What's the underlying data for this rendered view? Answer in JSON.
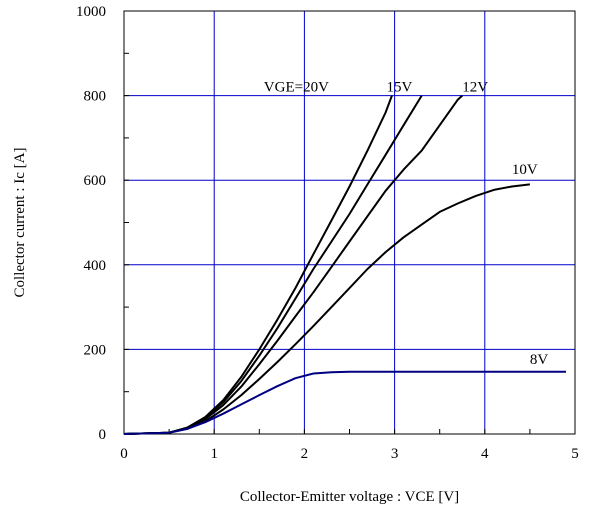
{
  "chart_data": {
    "type": "line",
    "title": "",
    "xlabel": "Collector-Emitter voltage : VCE [V]",
    "ylabel": "Collector current : Ic [A]",
    "xlim": [
      0,
      5
    ],
    "ylim": [
      0,
      1000
    ],
    "x_ticks": [
      "0",
      "1",
      "2",
      "3",
      "4",
      "5"
    ],
    "y_ticks": [
      "0",
      "200",
      "400",
      "600",
      "800",
      "1000"
    ],
    "grid": true,
    "grid_color": "#0000cc",
    "series": [
      {
        "name": "VGE=20V",
        "color": "#000000",
        "points": [
          [
            0,
            0
          ],
          [
            0.5,
            3
          ],
          [
            0.7,
            15
          ],
          [
            0.9,
            40
          ],
          [
            1.1,
            80
          ],
          [
            1.3,
            135
          ],
          [
            1.5,
            200
          ],
          [
            1.7,
            270
          ],
          [
            1.9,
            345
          ],
          [
            2.1,
            425
          ],
          [
            2.3,
            505
          ],
          [
            2.5,
            585
          ],
          [
            2.7,
            670
          ],
          [
            2.9,
            760
          ],
          [
            2.97,
            800
          ]
        ]
      },
      {
        "name": "15V",
        "color": "#000000",
        "points": [
          [
            0,
            0
          ],
          [
            0.5,
            3
          ],
          [
            0.7,
            15
          ],
          [
            0.9,
            38
          ],
          [
            1.1,
            75
          ],
          [
            1.3,
            125
          ],
          [
            1.5,
            185
          ],
          [
            1.7,
            250
          ],
          [
            1.9,
            320
          ],
          [
            2.1,
            390
          ],
          [
            2.3,
            455
          ],
          [
            2.5,
            520
          ],
          [
            2.7,
            590
          ],
          [
            2.9,
            660
          ],
          [
            3.1,
            730
          ],
          [
            3.3,
            800
          ]
        ]
      },
      {
        "name": "12V",
        "color": "#000000",
        "points": [
          [
            0,
            0
          ],
          [
            0.5,
            3
          ],
          [
            0.7,
            14
          ],
          [
            0.9,
            35
          ],
          [
            1.1,
            68
          ],
          [
            1.3,
            112
          ],
          [
            1.5,
            165
          ],
          [
            1.7,
            220
          ],
          [
            1.9,
            278
          ],
          [
            2.1,
            335
          ],
          [
            2.3,
            395
          ],
          [
            2.5,
            455
          ],
          [
            2.7,
            515
          ],
          [
            2.9,
            575
          ],
          [
            3.1,
            625
          ],
          [
            3.3,
            670
          ],
          [
            3.5,
            730
          ],
          [
            3.7,
            790
          ],
          [
            3.75,
            800
          ]
        ]
      },
      {
        "name": "10V",
        "color": "#000000",
        "points": [
          [
            0,
            0
          ],
          [
            0.5,
            3
          ],
          [
            0.7,
            12
          ],
          [
            0.9,
            30
          ],
          [
            1.1,
            58
          ],
          [
            1.3,
            92
          ],
          [
            1.5,
            130
          ],
          [
            1.7,
            170
          ],
          [
            1.9,
            212
          ],
          [
            2.1,
            255
          ],
          [
            2.3,
            300
          ],
          [
            2.5,
            345
          ],
          [
            2.7,
            390
          ],
          [
            2.9,
            430
          ],
          [
            3.1,
            465
          ],
          [
            3.3,
            495
          ],
          [
            3.5,
            525
          ],
          [
            3.7,
            545
          ],
          [
            3.9,
            563
          ],
          [
            4.1,
            577
          ],
          [
            4.3,
            585
          ],
          [
            4.5,
            590
          ]
        ]
      },
      {
        "name": "8V",
        "color": "#000080",
        "points": [
          [
            0,
            0
          ],
          [
            0.5,
            3
          ],
          [
            0.7,
            12
          ],
          [
            0.9,
            28
          ],
          [
            1.1,
            48
          ],
          [
            1.3,
            70
          ],
          [
            1.5,
            92
          ],
          [
            1.7,
            113
          ],
          [
            1.9,
            132
          ],
          [
            2.1,
            143
          ],
          [
            2.3,
            146
          ],
          [
            2.5,
            147
          ],
          [
            3,
            147
          ],
          [
            4,
            147
          ],
          [
            4.9,
            147
          ]
        ]
      }
    ],
    "series_labels": [
      {
        "text": "VGE=20V",
        "at": [
          1.55,
          810
        ]
      },
      {
        "text": "15V",
        "at": [
          2.91,
          810
        ]
      },
      {
        "text": "12V",
        "at": [
          3.75,
          810
        ]
      },
      {
        "text": "10V",
        "at": [
          4.3,
          615
        ]
      },
      {
        "text": "8V",
        "at": [
          4.5,
          165
        ]
      }
    ]
  }
}
